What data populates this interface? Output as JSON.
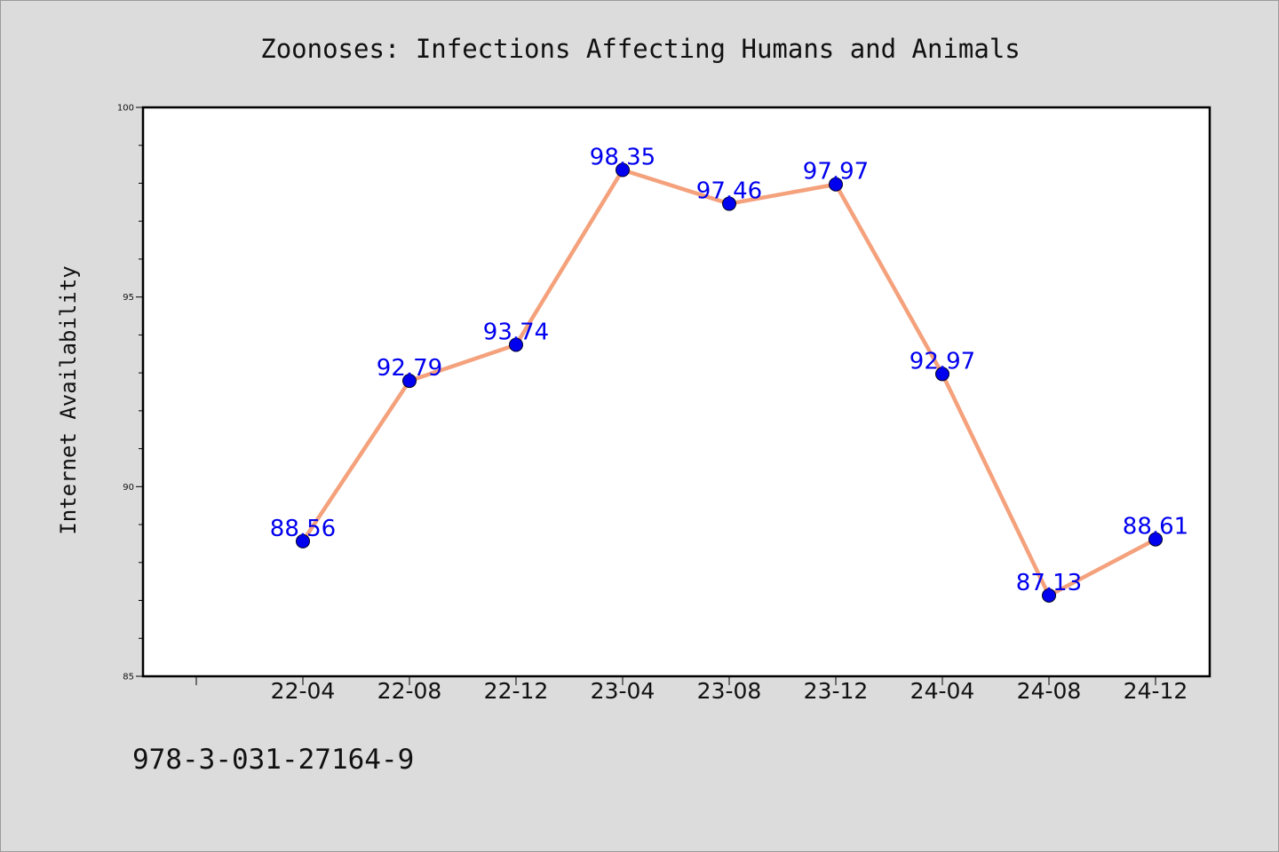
{
  "chart_data": {
    "type": "line",
    "title": "Zoonoses: Infections Affecting Humans and Animals",
    "xlabel": "",
    "ylabel": "Internet Availability",
    "categories": [
      "22-04",
      "22-08",
      "22-12",
      "23-04",
      "23-08",
      "23-12",
      "24-04",
      "24-08",
      "24-12"
    ],
    "series": [
      {
        "values": [
          88.56,
          92.79,
          93.74,
          98.35,
          97.46,
          97.97,
          92.97,
          87.13,
          88.61
        ],
        "data_labels": [
          "88.56",
          "92.79",
          "93.74",
          "98.35",
          "97.46",
          "97.97",
          "92.97",
          "87.13",
          "88.61"
        ]
      }
    ],
    "ylim": [
      85,
      100
    ],
    "y_ticks": [
      "85",
      "90",
      "95",
      "100"
    ],
    "grid": false,
    "legend": "none",
    "colors": {
      "line": "#f4a17c",
      "marker": "#0000ee",
      "data_label": "#0000ee",
      "plot_background": "#ffffff",
      "figure_background": "#dcdcdc"
    }
  },
  "footnote": "978-3-031-27164-9"
}
